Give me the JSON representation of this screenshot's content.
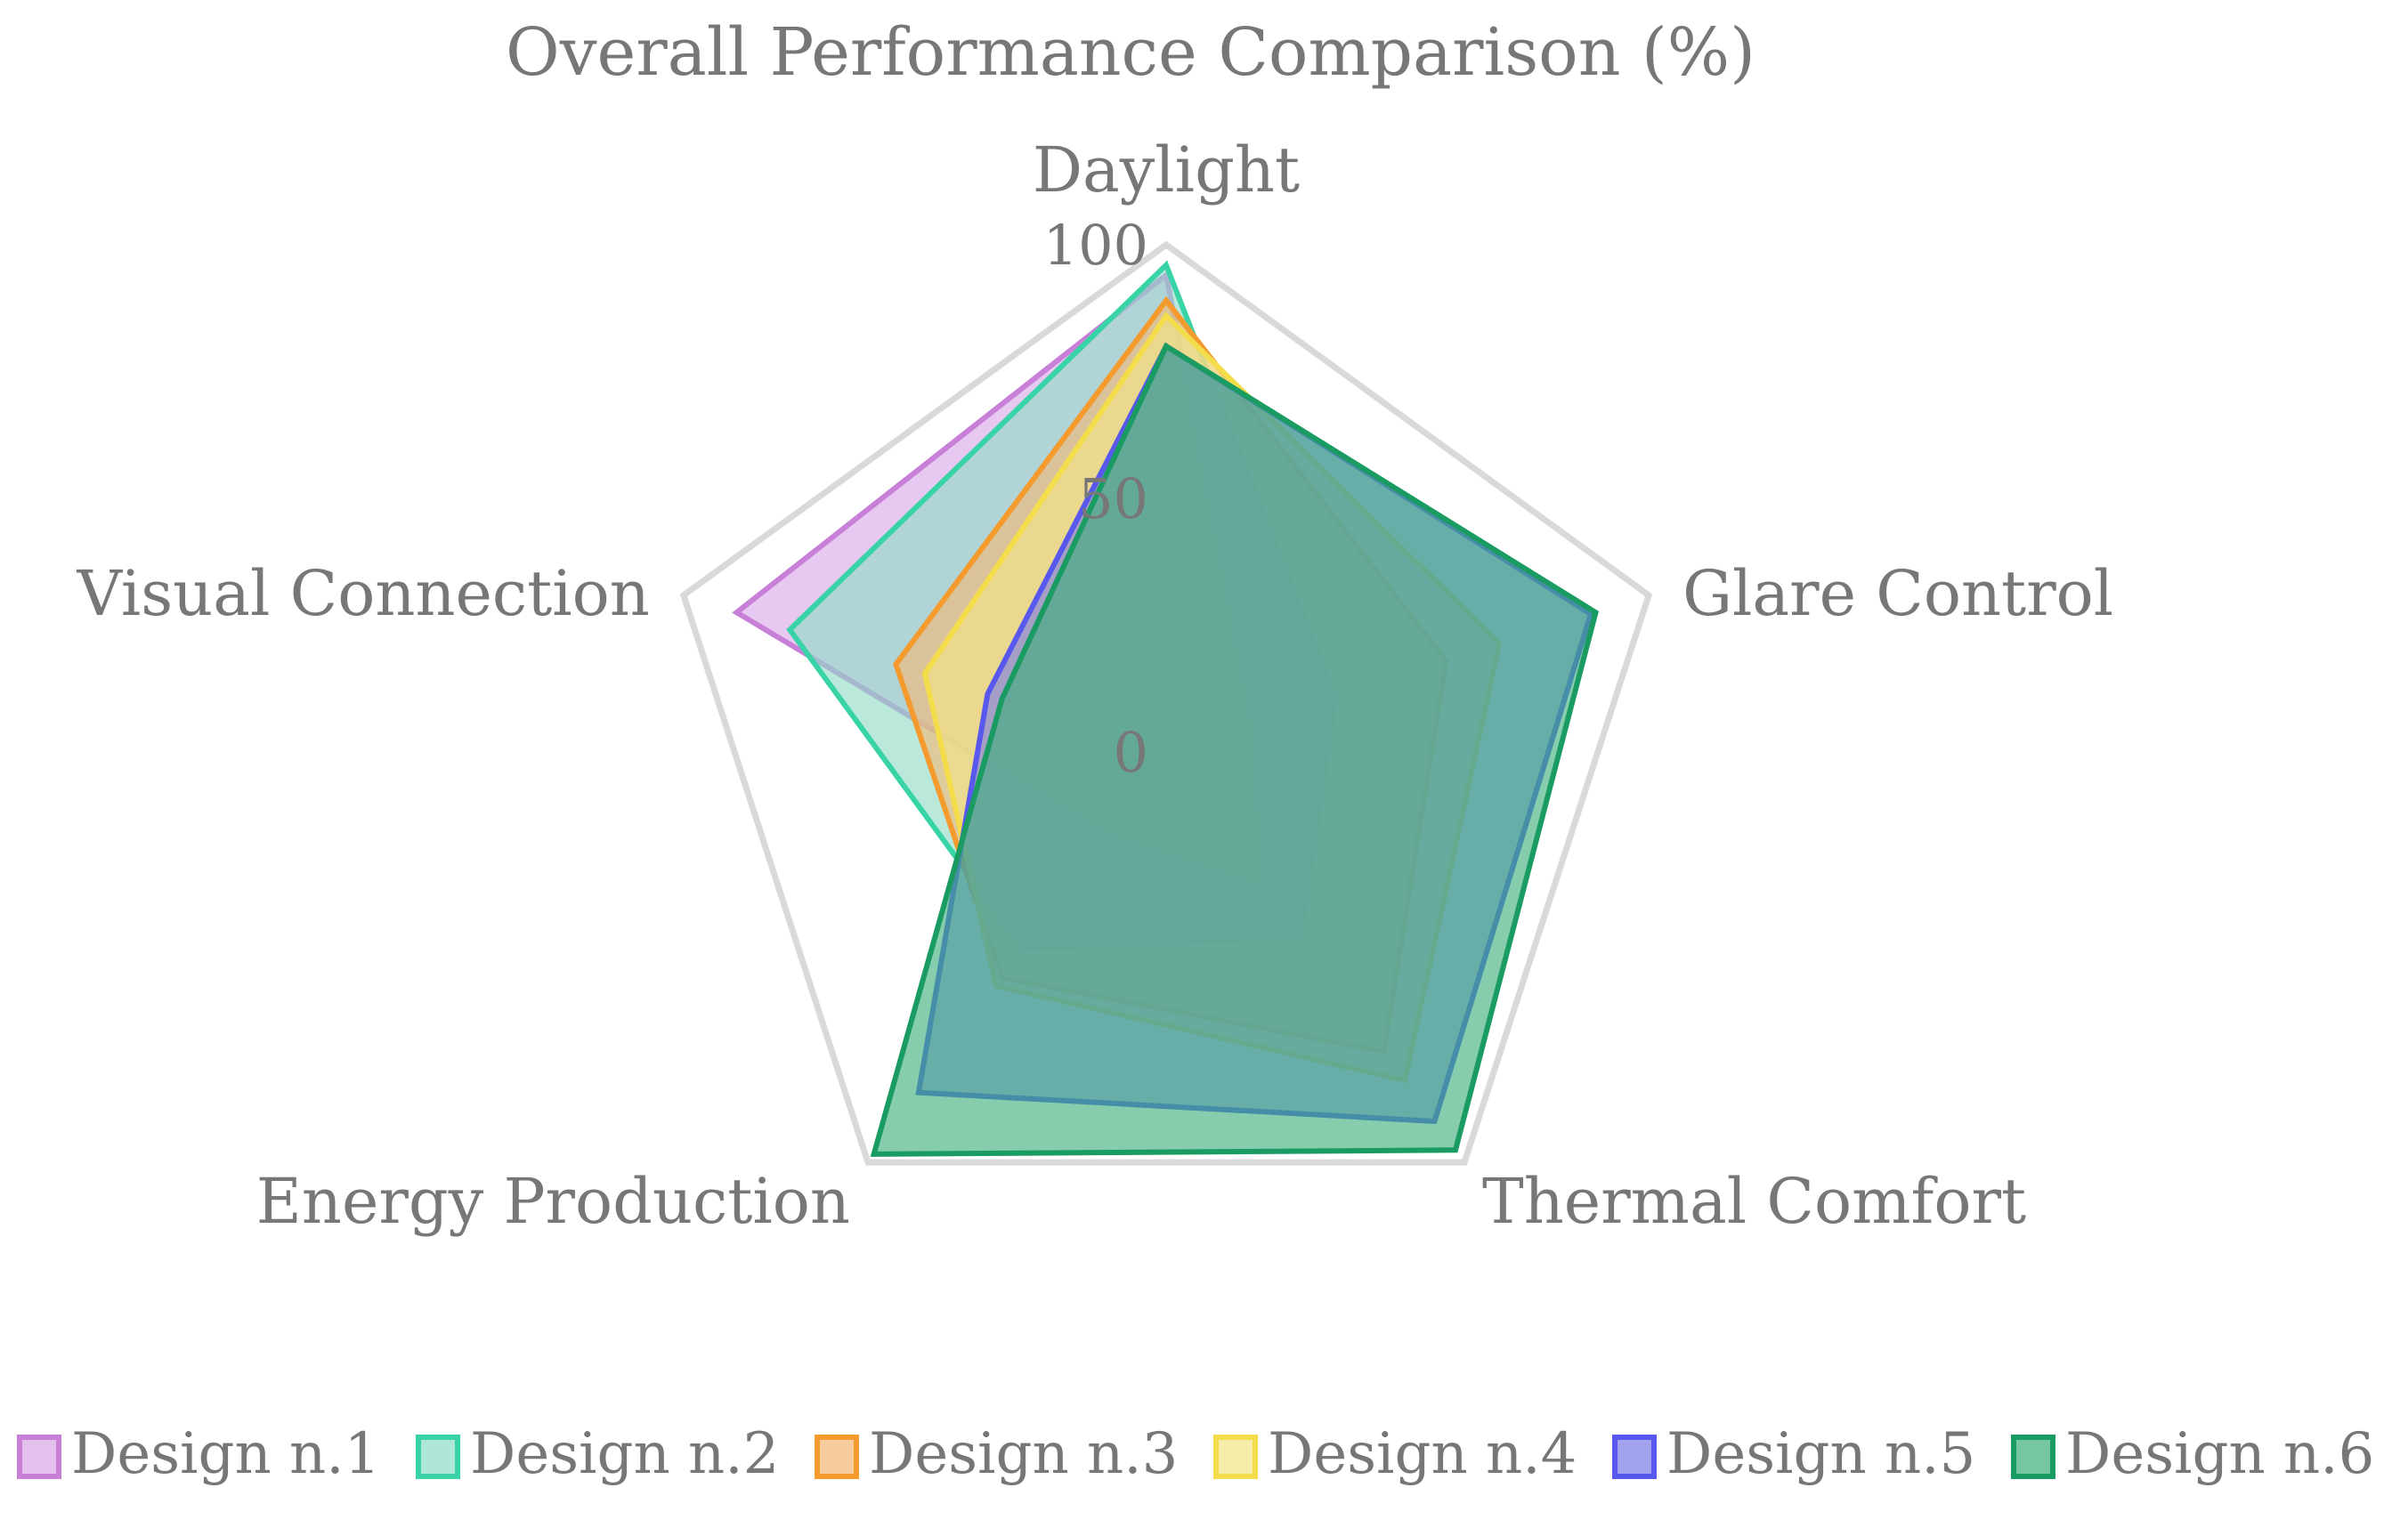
{
  "chart_data": {
    "type": "radar",
    "title": "Overall Performance Comparison (%)",
    "axes": [
      "Daylight",
      "Glare Control",
      "Thermal Comfort",
      "Energy Production",
      "Visual Connection"
    ],
    "range": [
      0,
      100
    ],
    "ticks": [
      0,
      50,
      100
    ],
    "grid": false,
    "legend_position": "bottom",
    "series": [
      {
        "name": "Design n.1",
        "color": "#c87fd8",
        "fill": "#d9a6e6",
        "values": [
          94,
          18,
          33,
          20,
          89
        ]
      },
      {
        "name": "Design n.2",
        "color": "#38d4a8",
        "fill": "#8fdcc6",
        "values": [
          96,
          35,
          45,
          48,
          78
        ]
      },
      {
        "name": "Design n.3",
        "color": "#f59a2c",
        "fill": "#f4b876",
        "values": [
          89,
          58,
          73,
          55,
          56
        ]
      },
      {
        "name": "Design n.4",
        "color": "#f4dd4a",
        "fill": "#f2e588",
        "values": [
          86,
          69,
          80,
          57,
          50
        ]
      },
      {
        "name": "Design n.5",
        "color": "#5858ee",
        "fill": "#7a7ae8",
        "values": [
          80,
          88,
          90,
          83,
          37
        ]
      },
      {
        "name": "Design n.6",
        "color": "#1a9b62",
        "fill": "#3cae7c",
        "values": [
          80,
          89,
          97,
          98,
          34
        ]
      }
    ]
  }
}
